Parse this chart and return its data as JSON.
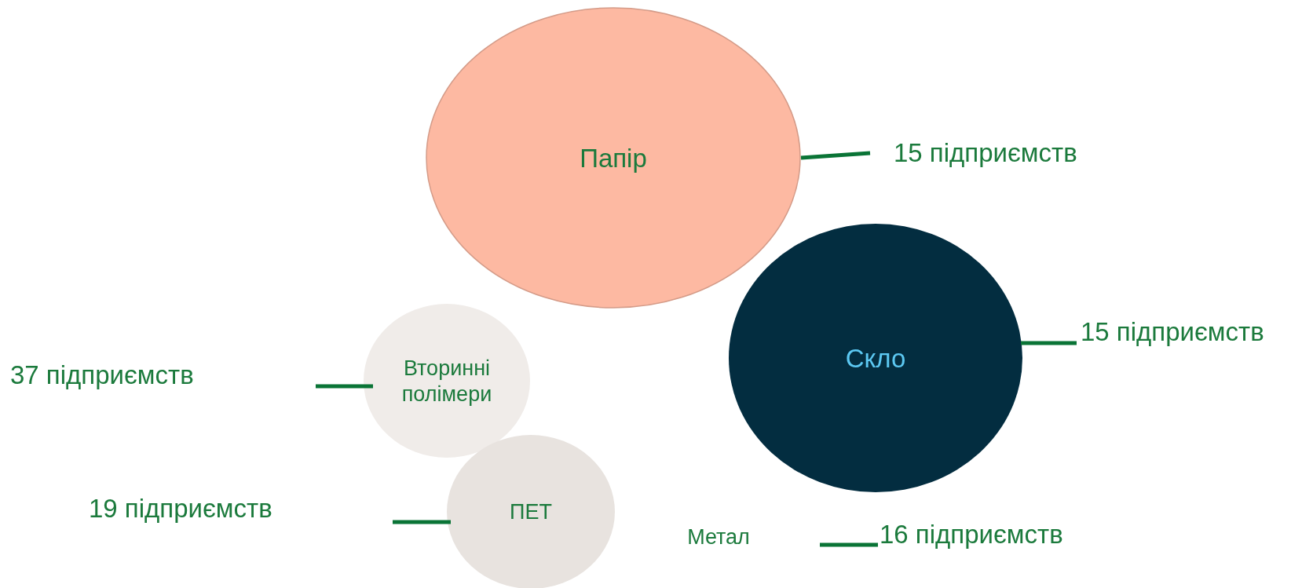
{
  "chart_data": {
    "type": "other",
    "categories": [
      "Папір",
      "Скло",
      "Вторинні полімери",
      "ПЕТ",
      "Метал"
    ],
    "values": [
      15,
      15,
      37,
      19,
      16
    ],
    "value_labels": [
      "15 підприємств",
      "15 підприємств",
      "37 підприємств",
      "19 підприємств",
      "16 підприємств"
    ],
    "colors": [
      "#fdb9a2",
      "#032d40",
      "#f0ece9",
      "#e8e3df",
      null
    ]
  }
}
